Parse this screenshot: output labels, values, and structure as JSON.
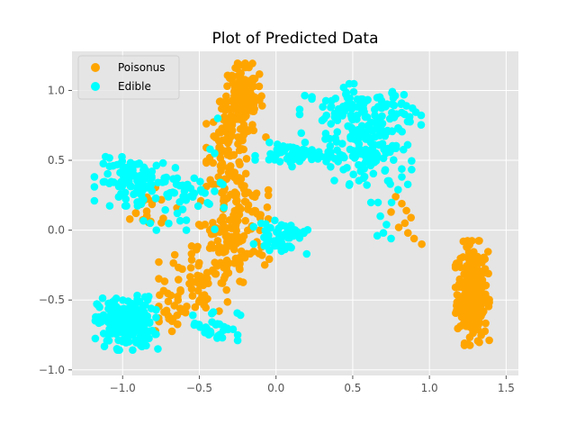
{
  "chart_data": {
    "type": "scatter",
    "title": "Plot of Predicted Data",
    "xlabel": "",
    "ylabel": "",
    "xlim": [
      -1.33,
      1.58
    ],
    "ylim": [
      -1.04,
      1.28
    ],
    "xticks": [
      -1.0,
      -0.5,
      0.0,
      0.5,
      1.0,
      1.5
    ],
    "xtick_labels": [
      "−1.0",
      "−0.5",
      "0.0",
      "0.5",
      "1.0",
      "1.5"
    ],
    "yticks": [
      -1.0,
      -0.5,
      0.0,
      0.5,
      1.0
    ],
    "ytick_labels": [
      "−1.0",
      "−0.5",
      "0.0",
      "0.5",
      "1.0"
    ],
    "grid": true,
    "legend_position": "top-left",
    "background": "#e5e5e5",
    "series": [
      {
        "name": "Poisonus",
        "color": "#ffa500",
        "clusters": [
          {
            "cx": 1.28,
            "cy": -0.45,
            "sx": 0.05,
            "sy": 0.17,
            "n": 280
          },
          {
            "cx": -0.22,
            "cy": 0.93,
            "sx": 0.07,
            "sy": 0.12,
            "n": 130
          },
          {
            "cx": -0.3,
            "cy": 0.62,
            "sx": 0.07,
            "sy": 0.14,
            "n": 90
          },
          {
            "cx": -0.27,
            "cy": 0.2,
            "sx": 0.1,
            "sy": 0.11,
            "n": 70
          },
          {
            "cx": -0.3,
            "cy": -0.12,
            "sx": 0.12,
            "sy": 0.14,
            "n": 90
          },
          {
            "cx": -0.5,
            "cy": -0.38,
            "sx": 0.12,
            "sy": 0.14,
            "n": 60
          },
          {
            "cx": -0.7,
            "cy": -0.55,
            "sx": 0.06,
            "sy": 0.09,
            "n": 20
          },
          {
            "cx": -0.85,
            "cy": 0.13,
            "sx": 0.1,
            "sy": 0.08,
            "n": 20
          }
        ],
        "points": [
          [
            0.78,
            0.24
          ],
          [
            0.82,
            0.19
          ],
          [
            0.85,
            0.14
          ],
          [
            0.88,
            0.09
          ],
          [
            0.8,
            0.02
          ],
          [
            0.86,
            -0.02
          ],
          [
            0.9,
            -0.06
          ],
          [
            0.95,
            -0.1
          ],
          [
            0.75,
            0.13
          ],
          [
            0.84,
            0.05
          ],
          [
            -0.18,
            0.18
          ],
          [
            -0.1,
            0.11
          ],
          [
            -0.05,
            0.08
          ],
          [
            -0.55,
            -0.42
          ]
        ]
      },
      {
        "name": "Edible",
        "color": "#00ffff",
        "clusters": [
          {
            "cx": -0.98,
            "cy": -0.66,
            "sx": 0.09,
            "sy": 0.09,
            "n": 200
          },
          {
            "cx": -0.92,
            "cy": 0.35,
            "sx": 0.12,
            "sy": 0.08,
            "n": 110
          },
          {
            "cx": 0.55,
            "cy": 0.85,
            "sx": 0.18,
            "sy": 0.09,
            "n": 110
          },
          {
            "cx": 0.62,
            "cy": 0.55,
            "sx": 0.12,
            "sy": 0.16,
            "n": 130
          },
          {
            "cx": 0.15,
            "cy": 0.54,
            "sx": 0.13,
            "sy": 0.04,
            "n": 70
          },
          {
            "cx": 0.03,
            "cy": -0.04,
            "sx": 0.08,
            "sy": 0.05,
            "n": 50
          },
          {
            "cx": -0.4,
            "cy": -0.68,
            "sx": 0.08,
            "sy": 0.06,
            "n": 30
          },
          {
            "cx": -0.6,
            "cy": 0.22,
            "sx": 0.12,
            "sy": 0.1,
            "n": 40
          }
        ],
        "points": [
          [
            -0.38,
            0.8
          ],
          [
            -0.43,
            0.58
          ],
          [
            -0.4,
            0.55
          ],
          [
            0.7,
            -0.02
          ],
          [
            0.72,
            0.04
          ],
          [
            0.68,
            0.1
          ],
          [
            0.75,
            -0.06
          ],
          [
            0.66,
            -0.04
          ],
          [
            -0.77,
            -0.85
          ],
          [
            -0.35,
            -0.77
          ],
          [
            -0.25,
            -0.75
          ],
          [
            -0.82,
            0.05
          ],
          [
            -0.78,
            0.0
          ],
          [
            0.2,
            -0.17
          ]
        ]
      }
    ]
  }
}
